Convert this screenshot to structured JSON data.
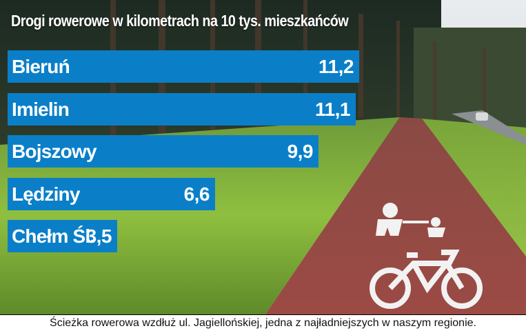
{
  "chart_data": {
    "type": "bar",
    "orientation": "horizontal",
    "title": "Drogi rowerowe w kilometrach na 10 tys. mieszkańców",
    "categories": [
      "Bieruń",
      "Imielin",
      "Bojszowy",
      "Lędziny",
      "Chełm Śl."
    ],
    "values": [
      11.2,
      11.1,
      9.9,
      6.6,
      3.5
    ],
    "value_labels": [
      "11,2",
      "11,1",
      "9,9",
      "6,6",
      "3,5"
    ],
    "bar_color": "#0a7fc8",
    "xlim": [
      0,
      11.2
    ]
  },
  "caption": "Ścieżka rowerowa wzdłuż ul. Jagiellońskiej, jedna z najładniejszych w naszym regionie."
}
